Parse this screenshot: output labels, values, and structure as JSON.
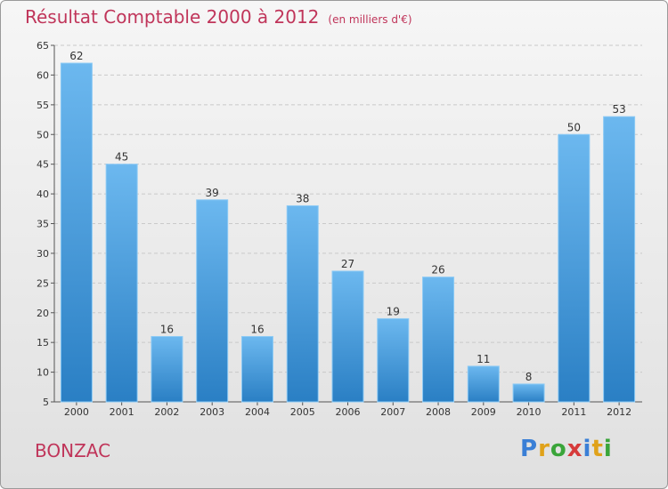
{
  "title": "Résultat Comptable 2000 à 2012",
  "subtitle": "(en milliers d'€)",
  "location": "BONZAC",
  "brand": {
    "letters": [
      "P",
      "r",
      "o",
      "x",
      "i",
      "t",
      "i"
    ],
    "colors": [
      "#3a7fd6",
      "#e0a21a",
      "#3aa53a",
      "#d63a3a",
      "#3a7fd6",
      "#e0a21a",
      "#3aa53a"
    ]
  },
  "colors": {
    "bar_top": "#6cb8ef",
    "bar_bottom": "#2a7fc4",
    "title": "#c0355a"
  },
  "chart_data": {
    "type": "bar",
    "categories": [
      "2000",
      "2001",
      "2002",
      "2003",
      "2004",
      "2005",
      "2006",
      "2007",
      "2008",
      "2009",
      "2010",
      "2011",
      "2012"
    ],
    "values": [
      62,
      45,
      16,
      39,
      16,
      38,
      27,
      19,
      26,
      11,
      8,
      50,
      53
    ],
    "ylim": [
      5,
      65
    ],
    "yticks": [
      5,
      10,
      15,
      20,
      25,
      30,
      35,
      40,
      45,
      50,
      55,
      60,
      65
    ],
    "grid": true,
    "xlabel": "",
    "ylabel": ""
  }
}
